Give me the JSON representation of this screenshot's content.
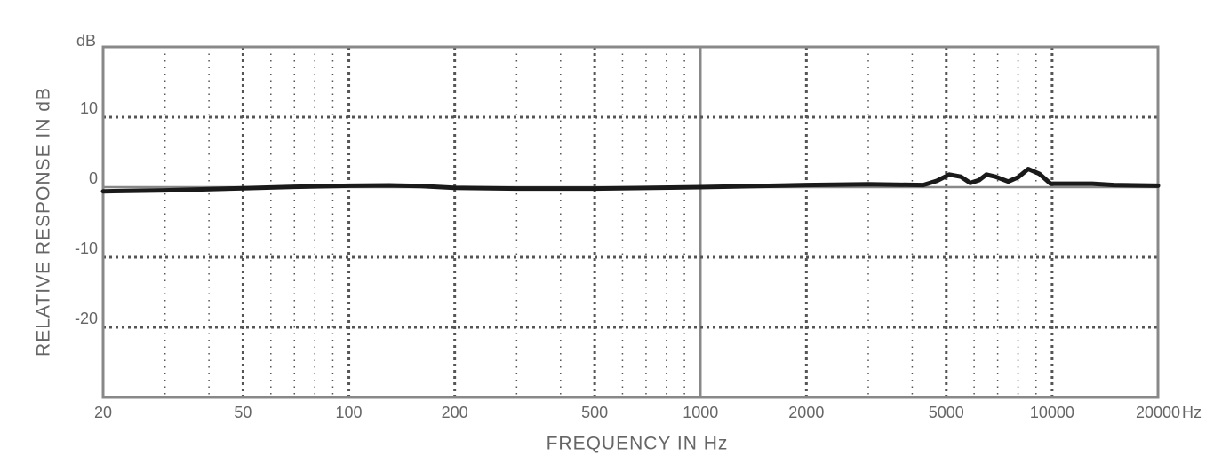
{
  "chart_data": {
    "type": "line",
    "x_label": "FREQUENCY IN Hz",
    "y_label": "RELATIVE RESPONSE IN dB",
    "x_unit": "Hz",
    "y_unit": "dB",
    "x_scale": "log",
    "xlim": [
      20,
      20000
    ],
    "ylim": [
      -30,
      20
    ],
    "xticks": [
      20,
      50,
      100,
      200,
      500,
      1000,
      2000,
      5000,
      10000,
      20000
    ],
    "minor_xticks": [
      30,
      40,
      60,
      70,
      80,
      90,
      300,
      400,
      600,
      700,
      800,
      900,
      3000,
      4000,
      6000,
      7000,
      8000,
      9000
    ],
    "yticks": [
      -20,
      -10,
      0,
      10
    ],
    "solid_grid_x": [
      1000
    ],
    "solid_grid_y": [
      0
    ],
    "grid": true,
    "series": [
      {
        "color": "#1a1a1a",
        "x": [
          20,
          30,
          50,
          70,
          100,
          130,
          160,
          200,
          300,
          500,
          1000,
          2000,
          3000,
          4300,
          4700,
          5100,
          5500,
          5850,
          6200,
          6500,
          6900,
          7500,
          8000,
          8550,
          9200,
          9900,
          13000,
          15000,
          20000
        ],
        "values": [
          -0.6,
          -0.45,
          -0.15,
          0.05,
          0.2,
          0.25,
          0.15,
          -0.1,
          -0.2,
          -0.2,
          0,
          0.3,
          0.4,
          0.3,
          0.9,
          1.8,
          1.5,
          0.6,
          1.0,
          1.8,
          1.5,
          0.8,
          1.4,
          2.6,
          1.9,
          0.5,
          0.5,
          0.3,
          0.2
        ]
      }
    ]
  }
}
